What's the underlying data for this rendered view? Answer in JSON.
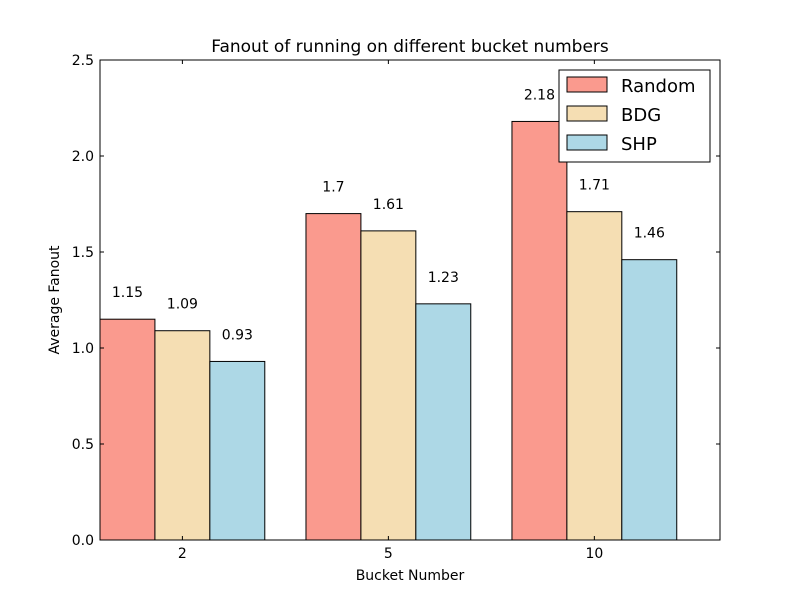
{
  "chart_data": {
    "type": "bar",
    "title": "Fanout of running on different bucket numbers",
    "xlabel": "Bucket Number",
    "ylabel": "Average Fanout",
    "categories": [
      "2",
      "5",
      "10"
    ],
    "ylim": [
      0,
      2.5
    ],
    "yticks": [
      "0.0",
      "0.5",
      "1.0",
      "1.5",
      "2.0",
      "2.5"
    ],
    "grid": false,
    "legend_position": "top-right",
    "series": [
      {
        "name": "Random",
        "color": "#fa9a8e",
        "values": [
          1.15,
          1.7,
          2.18
        ],
        "labels": [
          "1.15",
          "1.7",
          "2.18"
        ]
      },
      {
        "name": "BDG",
        "color": "#f5deb3",
        "values": [
          1.09,
          1.61,
          1.71
        ],
        "labels": [
          "1.09",
          "1.61",
          "1.71"
        ]
      },
      {
        "name": "SHP",
        "color": "#add8e6",
        "values": [
          0.93,
          1.23,
          1.46
        ],
        "labels": [
          "0.93",
          "1.23",
          "1.46"
        ]
      }
    ]
  }
}
